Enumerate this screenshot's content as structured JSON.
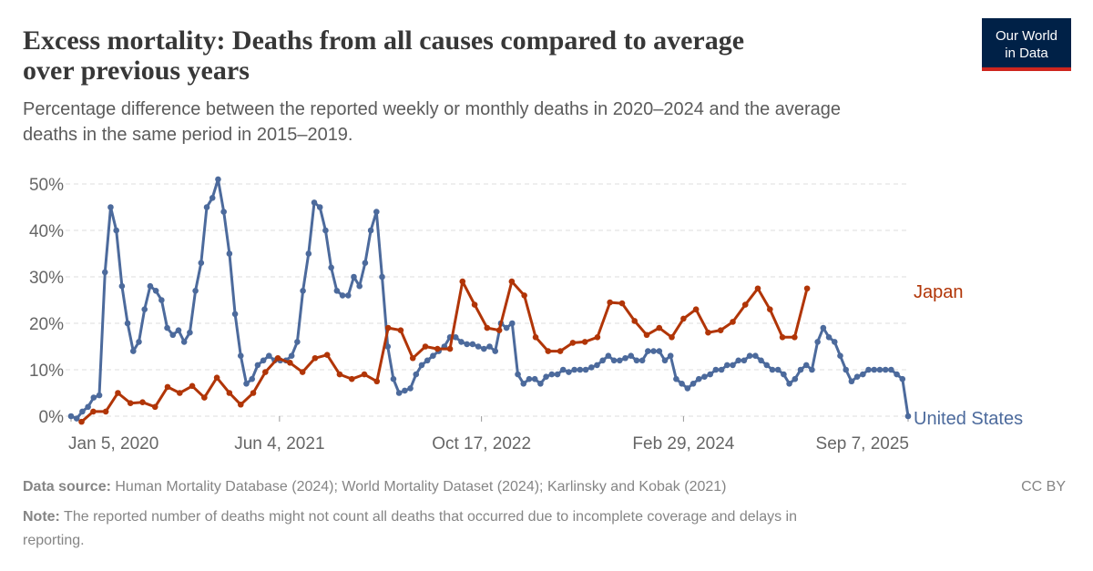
{
  "chart_data": {
    "type": "line",
    "title": [
      "Excess mortality: Deaths from all causes compared to average",
      "over previous years"
    ],
    "subtitle": [
      "Percentage difference between the reported weekly or monthly deaths in 2020–2024 and the average",
      "deaths in the same period in 2015–2019."
    ],
    "source_label": "Data source:",
    "source": "Human Mortality Database (2024); World Mortality Dataset (2024); Karlinsky and Kobak (2021)",
    "license": "CC BY",
    "note_label": "Note:",
    "note": [
      "The reported number of deaths might not count all deaths that occurred due to incomplete coverage and delays in",
      "reporting."
    ],
    "logo": [
      "Our World",
      "in Data"
    ],
    "xlim": [
      "2020-01-05",
      "2025-09-07"
    ],
    "xticks": [
      {
        "value": "2020-01-05",
        "label": "Jan 5, 2020"
      },
      {
        "value": "2021-06-04",
        "label": "Jun 4, 2021"
      },
      {
        "value": "2022-10-17",
        "label": "Oct 17, 2022"
      },
      {
        "value": "2024-02-29",
        "label": "Feb 29, 2024"
      },
      {
        "value": "2025-09-07",
        "label": "Sep 7, 2025"
      }
    ],
    "ylim": [
      0,
      50
    ],
    "yticks": [
      {
        "value": 0,
        "label": "0%"
      },
      {
        "value": 10,
        "label": "10%"
      },
      {
        "value": 20,
        "label": "20%"
      },
      {
        "value": 30,
        "label": "30%"
      },
      {
        "value": 40,
        "label": "40%"
      },
      {
        "value": 50,
        "label": "50%"
      }
    ],
    "grid": true,
    "series": [
      {
        "name": "United States",
        "color": "#4c6a9c",
        "x": [
          "2020-01-05",
          "2020-01-19",
          "2020-02-02",
          "2020-02-16",
          "2020-03-01",
          "2020-03-15",
          "2020-03-29",
          "2020-04-12",
          "2020-04-26",
          "2020-05-10",
          "2020-05-24",
          "2020-06-07",
          "2020-06-21",
          "2020-07-05",
          "2020-07-19",
          "2020-08-02",
          "2020-08-16",
          "2020-08-30",
          "2020-09-13",
          "2020-09-27",
          "2020-10-11",
          "2020-10-25",
          "2020-11-08",
          "2020-11-22",
          "2020-12-06",
          "2020-12-20",
          "2021-01-03",
          "2021-01-17",
          "2021-01-31",
          "2021-02-14",
          "2021-02-28",
          "2021-03-14",
          "2021-03-28",
          "2021-04-11",
          "2021-04-25",
          "2021-05-09",
          "2021-05-23",
          "2021-06-06",
          "2021-06-20",
          "2021-07-04",
          "2021-07-18",
          "2021-08-01",
          "2021-08-15",
          "2021-08-29",
          "2021-09-12",
          "2021-09-26",
          "2021-10-10",
          "2021-10-24",
          "2021-11-07",
          "2021-11-21",
          "2021-12-05",
          "2021-12-19",
          "2022-01-02",
          "2022-01-16",
          "2022-01-30",
          "2022-02-13",
          "2022-02-27",
          "2022-03-13",
          "2022-03-27",
          "2022-04-10",
          "2022-04-24",
          "2022-05-08",
          "2022-05-22",
          "2022-06-05",
          "2022-06-19",
          "2022-07-03",
          "2022-07-17",
          "2022-07-31",
          "2022-08-14",
          "2022-08-28",
          "2022-09-11",
          "2022-09-25",
          "2022-10-09",
          "2022-10-23",
          "2022-11-06",
          "2022-11-20",
          "2022-12-04",
          "2022-12-18",
          "2023-01-01",
          "2023-01-15",
          "2023-01-29",
          "2023-02-12",
          "2023-02-26",
          "2023-03-12",
          "2023-03-26",
          "2023-04-09",
          "2023-04-23",
          "2023-05-07",
          "2023-05-21",
          "2023-06-04",
          "2023-06-18",
          "2023-07-02",
          "2023-07-16",
          "2023-07-30",
          "2023-08-13",
          "2023-08-27",
          "2023-09-10",
          "2023-09-24",
          "2023-10-08",
          "2023-10-22",
          "2023-11-05",
          "2023-11-19",
          "2023-12-03",
          "2023-12-17",
          "2023-12-31",
          "2024-01-14",
          "2024-01-28",
          "2024-02-11",
          "2024-02-25",
          "2024-03-10",
          "2024-03-24",
          "2024-04-07",
          "2024-04-21",
          "2024-05-05",
          "2024-05-19",
          "2024-06-02",
          "2024-06-16",
          "2024-06-30",
          "2024-07-14",
          "2024-07-28",
          "2024-08-11",
          "2024-08-25",
          "2024-09-08",
          "2024-09-22",
          "2024-10-06",
          "2024-10-20",
          "2024-11-03",
          "2024-11-17",
          "2024-12-01",
          "2024-12-15",
          "2024-12-29",
          "2025-01-12",
          "2025-01-26",
          "2025-02-09",
          "2025-02-23",
          "2025-03-09",
          "2025-03-23",
          "2025-04-06",
          "2025-04-20",
          "2025-05-04",
          "2025-05-18",
          "2025-06-01",
          "2025-06-15",
          "2025-06-29",
          "2025-07-13",
          "2025-07-27",
          "2025-08-10",
          "2025-08-24",
          "2025-09-07"
        ],
        "values": [
          0,
          -0.5,
          1,
          2,
          4,
          4.5,
          31,
          45,
          40,
          28,
          20,
          14,
          16,
          23,
          28,
          27,
          25,
          19,
          17.5,
          18.5,
          16,
          18,
          27,
          33,
          45,
          47,
          51,
          44,
          35,
          22,
          13,
          7,
          8,
          11,
          12,
          13,
          12,
          12,
          12,
          13,
          16,
          27,
          35,
          46,
          45,
          40,
          32,
          27,
          26,
          26,
          30,
          28,
          33,
          40,
          44,
          30,
          15,
          8,
          5,
          5.5,
          6,
          9,
          11,
          12,
          13,
          14,
          15,
          17,
          17,
          16,
          15.5,
          15.5,
          15,
          14.5,
          15,
          14,
          20,
          19,
          20,
          9,
          7,
          8,
          8,
          7,
          8.5,
          9,
          9,
          10,
          9.5,
          10,
          10,
          10,
          10.5,
          11,
          12,
          13,
          12,
          12,
          12.5,
          13,
          12,
          12,
          14,
          14,
          14,
          12,
          13,
          8,
          7,
          6,
          7,
          8,
          8.5,
          9,
          10,
          10,
          11,
          11,
          12,
          12,
          13,
          13,
          12,
          11,
          10,
          10,
          9,
          7,
          8,
          10,
          11,
          10,
          16,
          19,
          17,
          16,
          13,
          10,
          7.5,
          8.5,
          9,
          10,
          10,
          10,
          10,
          10,
          9,
          8,
          0
        ]
      },
      {
        "name": "Japan",
        "color": "#b13507",
        "x": [
          "2020-01-31",
          "2020-02-29",
          "2020-03-31",
          "2020-04-30",
          "2020-05-31",
          "2020-06-30",
          "2020-07-31",
          "2020-08-31",
          "2020-09-30",
          "2020-10-31",
          "2020-11-30",
          "2020-12-31",
          "2021-01-31",
          "2021-02-28",
          "2021-03-31",
          "2021-04-30",
          "2021-05-31",
          "2021-06-30",
          "2021-07-31",
          "2021-08-31",
          "2021-09-30",
          "2021-10-31",
          "2021-11-30",
          "2021-12-31",
          "2022-01-31",
          "2022-02-28",
          "2022-03-31",
          "2022-04-30",
          "2022-05-31",
          "2022-06-30",
          "2022-07-31",
          "2022-08-31",
          "2022-09-30",
          "2022-10-31",
          "2022-11-30",
          "2022-12-31",
          "2023-01-31",
          "2023-02-28",
          "2023-03-31",
          "2023-04-30",
          "2023-05-31",
          "2023-06-30",
          "2023-07-31",
          "2023-08-31",
          "2023-09-30",
          "2023-10-31",
          "2023-11-30",
          "2023-12-31",
          "2024-01-31",
          "2024-02-29",
          "2024-03-31",
          "2024-04-30",
          "2024-05-31",
          "2024-06-30",
          "2024-07-31",
          "2024-08-31",
          "2024-09-30",
          "2024-10-31",
          "2024-11-30",
          "2024-12-31"
        ],
        "values": [
          -1.2,
          1,
          1,
          5,
          2.8,
          3,
          2,
          6.3,
          5,
          6.5,
          4,
          8.3,
          5,
          2.5,
          5,
          9.5,
          12.5,
          11.5,
          9.5,
          12.5,
          13.2,
          9,
          8,
          9,
          7.5,
          19,
          18.5,
          12.5,
          15,
          14.5,
          14.5,
          29,
          24,
          19,
          18.5,
          29,
          26,
          17,
          14,
          14,
          15.8,
          16,
          17,
          24.5,
          24.3,
          20.5,
          17.5,
          19,
          17,
          21,
          23,
          18,
          18.5,
          20.3,
          24,
          27.5,
          23,
          17,
          17,
          27.5
        ]
      }
    ]
  }
}
